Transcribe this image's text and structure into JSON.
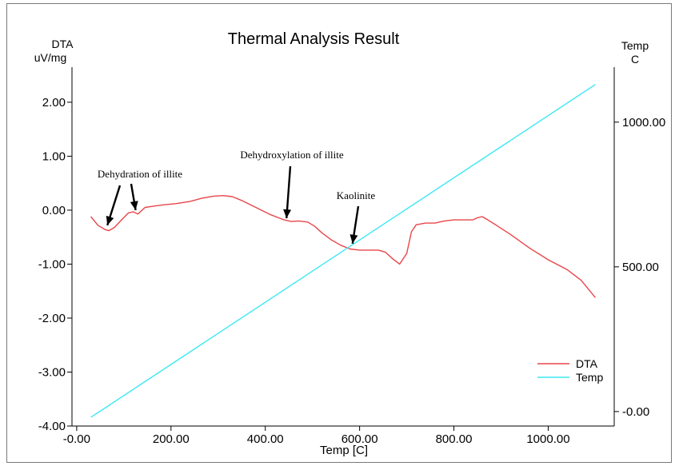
{
  "chart_data": {
    "type": "line",
    "title": "Thermal Analysis Result",
    "xlabel": "Temp  [C]",
    "y_left_label_line1": "DTA",
    "y_left_label_line2": "uV/mg",
    "y_right_label_line1": "Temp",
    "y_right_label_line2": "C",
    "xlim": [
      -10,
      1140
    ],
    "ylim_left": [
      -4.0,
      2.65
    ],
    "ylim_right": [
      -50,
      1190
    ],
    "x_ticks": [
      {
        "value": 0,
        "label": "-0.00"
      },
      {
        "value": 200,
        "label": "200.00"
      },
      {
        "value": 400,
        "label": "400.00"
      },
      {
        "value": 600,
        "label": "600.00"
      },
      {
        "value": 800,
        "label": "800.00"
      },
      {
        "value": 1000,
        "label": "1000.00"
      }
    ],
    "y_left_ticks": [
      {
        "value": 2,
        "label": "2.00"
      },
      {
        "value": 1,
        "label": "1.00"
      },
      {
        "value": 0,
        "label": "0.00"
      },
      {
        "value": -1,
        "label": "-1.00"
      },
      {
        "value": -2,
        "label": "-2.00"
      },
      {
        "value": -3,
        "label": "-3.00"
      },
      {
        "value": -4,
        "label": "-4.00"
      }
    ],
    "y_right_ticks": [
      {
        "value": 1000,
        "label": "1000.00"
      },
      {
        "value": 500,
        "label": "500.00"
      },
      {
        "value": 0,
        "label": "-0.00"
      }
    ],
    "legend_position": "bottom-right",
    "series": [
      {
        "name": "DTA",
        "axis": "left",
        "color": "#e8464a",
        "x": [
          30,
          45,
          60,
          68,
          80,
          95,
          110,
          120,
          130,
          145,
          160,
          185,
          210,
          240,
          265,
          290,
          310,
          330,
          350,
          380,
          410,
          440,
          455,
          470,
          490,
          505,
          520,
          540,
          560,
          580,
          600,
          620,
          640,
          655,
          670,
          685,
          700,
          710,
          720,
          740,
          760,
          780,
          800,
          820,
          840,
          850,
          860,
          870,
          890,
          920,
          960,
          1000,
          1040,
          1070,
          1100
        ],
        "y": [
          -0.12,
          -0.28,
          -0.36,
          -0.38,
          -0.32,
          -0.18,
          -0.05,
          -0.03,
          -0.07,
          0.05,
          0.07,
          0.1,
          0.12,
          0.16,
          0.22,
          0.26,
          0.27,
          0.25,
          0.18,
          0.05,
          -0.08,
          -0.18,
          -0.21,
          -0.2,
          -0.22,
          -0.3,
          -0.42,
          -0.55,
          -0.65,
          -0.72,
          -0.74,
          -0.74,
          -0.74,
          -0.78,
          -0.9,
          -1.0,
          -0.8,
          -0.4,
          -0.27,
          -0.24,
          -0.24,
          -0.2,
          -0.18,
          -0.18,
          -0.18,
          -0.14,
          -0.12,
          -0.17,
          -0.28,
          -0.45,
          -0.7,
          -0.92,
          -1.1,
          -1.3,
          -1.62
        ]
      },
      {
        "name": "Temp",
        "axis": "right",
        "color": "#3de8f4",
        "x": [
          30,
          1100
        ],
        "y": [
          -20,
          1130
        ]
      }
    ],
    "annotations": [
      {
        "text": "Dehydration of illite",
        "target_x": 65,
        "target_y": -0.28
      },
      {
        "text": "",
        "target_x": 125,
        "target_y": 0.0
      },
      {
        "text": "Dehydroxylation of illite",
        "target_x": 445,
        "target_y": -0.15
      },
      {
        "text": "Kaolinite",
        "target_x": 585,
        "target_y": -0.62
      }
    ]
  }
}
